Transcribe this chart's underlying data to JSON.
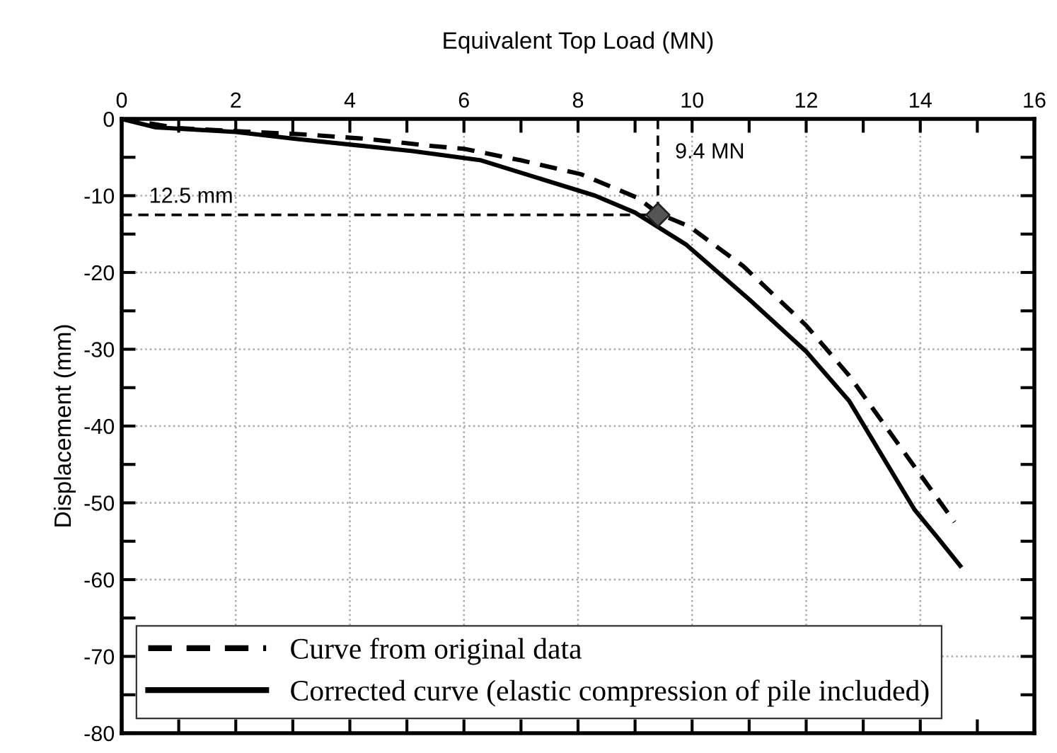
{
  "chart_data": {
    "type": "line",
    "xlabel": "Equivalent Top Load (MN)",
    "ylabel": "Displacement (mm)",
    "xlim": [
      0,
      16
    ],
    "xticks": [
      0,
      2,
      4,
      6,
      8,
      10,
      12,
      14,
      16
    ],
    "ylim": [
      -80,
      0
    ],
    "yticks": [
      -80,
      -70,
      -60,
      -50,
      -40,
      -30,
      -20,
      -10,
      0
    ],
    "grid": true,
    "legend": "bottom left",
    "series": [
      {
        "name": "Curve from original data",
        "color": "#000000",
        "line_style": "dashed",
        "x": [
          0,
          1,
          2,
          3.15,
          4.3,
          5.4,
          6,
          7,
          8.05,
          9.05,
          9.4,
          9.95,
          10.9,
          12,
          12.75,
          13.9,
          14.6
        ],
        "values": [
          0,
          -1.2,
          -1.6,
          -2.0,
          -2.6,
          -3.5,
          -3.9,
          -5.4,
          -7.2,
          -10.3,
          -12.3,
          -14,
          -19.2,
          -26.9,
          -33.4,
          -45.3,
          -52.5
        ]
      },
      {
        "name": "Corrected curve (elastic compression of pile included)",
        "color": "#000000",
        "line_style": "solid",
        "x": [
          0,
          0.6,
          2,
          3.05,
          5.1,
          6.3,
          8.3,
          9.0,
          9.9,
          11.0,
          12.0,
          12.75,
          13.9,
          14.3,
          14.7
        ],
        "values": [
          0,
          -1.1,
          -1.7,
          -2.6,
          -4.2,
          -5.4,
          -10,
          -12.2,
          -16.4,
          -23.5,
          -30.3,
          -36.7,
          -50.9,
          -54.5,
          -58.2
        ]
      },
      {
        "type": "scatter",
        "color": "#555555",
        "marker": "diamond",
        "x": [
          9.4
        ],
        "values": [
          -12.5
        ]
      }
    ],
    "ref_lines": [
      {
        "axis": "y",
        "value": -12.5,
        "label": "12.5 mm",
        "color": "#000000",
        "line_style": "dashed"
      },
      {
        "axis": "x",
        "value": 9.4,
        "label": "9.4 MN",
        "color": "#000000",
        "line_style": "dashed"
      }
    ]
  }
}
